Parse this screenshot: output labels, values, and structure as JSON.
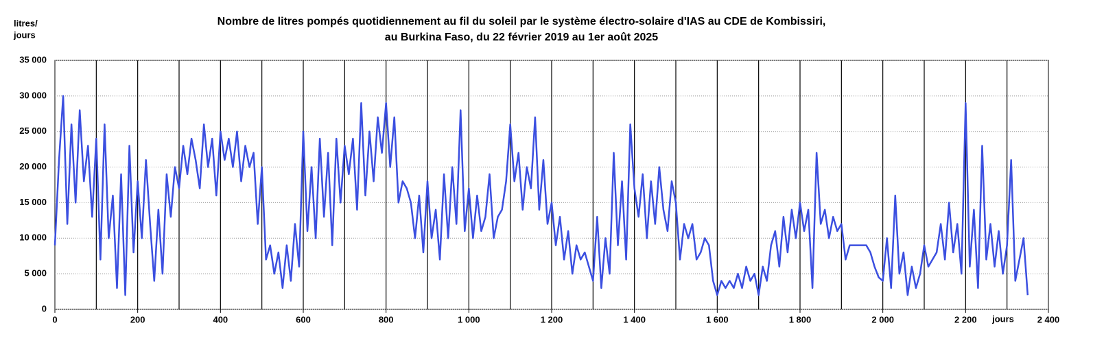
{
  "chart_data": {
    "type": "line",
    "title": [
      "Nombre de litres pompés quotidiennement au fil du soleil par le système électro-solaire d'IAS au CDE de Kombissiri,",
      "au Burkina Faso, du 22 février 2019 au 1er août 2025"
    ],
    "y_label": [
      "litres/",
      "jours"
    ],
    "x_label": "jours",
    "xlim": [
      0,
      2400
    ],
    "ylim": [
      0,
      35000
    ],
    "xticks": [
      0,
      200,
      400,
      600,
      800,
      {
        "value": 1000,
        "label": "1 000"
      },
      {
        "value": 1200,
        "label": "1 200"
      },
      {
        "value": 1400,
        "label": "1 400"
      },
      {
        "value": 1600,
        "label": "1 600"
      },
      {
        "value": 1800,
        "label": "1 800"
      },
      {
        "value": 2000,
        "label": "2 000"
      },
      {
        "value": 2200,
        "label": "2 200"
      },
      {
        "value": 2400,
        "label": "2 400"
      }
    ],
    "yticks": [
      0,
      {
        "value": 5000,
        "label": "5 000"
      },
      {
        "value": 10000,
        "label": "10 000"
      },
      {
        "value": 15000,
        "label": "15 000"
      },
      {
        "value": 20000,
        "label": "20 000"
      },
      {
        "value": 25000,
        "label": "25 000"
      },
      {
        "value": 30000,
        "label": "30 000"
      },
      {
        "value": 35000,
        "label": "35 000"
      }
    ],
    "xgrid": [
      100,
      200,
      300,
      400,
      500,
      600,
      700,
      800,
      900,
      1000,
      1100,
      1200,
      1300,
      1400,
      1500,
      1600,
      1700,
      1800,
      1900,
      2000,
      2100,
      2200,
      2300
    ],
    "grid": true,
    "x": [
      0,
      10,
      20,
      30,
      40,
      50,
      60,
      70,
      80,
      90,
      100,
      110,
      120,
      130,
      140,
      150,
      160,
      170,
      180,
      190,
      200,
      210,
      220,
      230,
      240,
      250,
      260,
      270,
      280,
      290,
      300,
      310,
      320,
      330,
      340,
      350,
      360,
      370,
      380,
      390,
      400,
      410,
      420,
      430,
      440,
      450,
      460,
      470,
      480,
      490,
      500,
      510,
      520,
      530,
      540,
      550,
      560,
      570,
      580,
      590,
      600,
      610,
      620,
      630,
      640,
      650,
      660,
      670,
      680,
      690,
      700,
      710,
      720,
      730,
      740,
      750,
      760,
      770,
      780,
      790,
      800,
      810,
      820,
      830,
      840,
      850,
      860,
      870,
      880,
      890,
      900,
      910,
      920,
      930,
      940,
      950,
      960,
      970,
      980,
      990,
      1000,
      1010,
      1020,
      1030,
      1040,
      1050,
      1060,
      1070,
      1080,
      1090,
      1100,
      1110,
      1120,
      1130,
      1140,
      1150,
      1160,
      1170,
      1180,
      1190,
      1200,
      1210,
      1220,
      1230,
      1240,
      1250,
      1260,
      1270,
      1280,
      1290,
      1300,
      1310,
      1320,
      1330,
      1340,
      1350,
      1360,
      1370,
      1380,
      1390,
      1400,
      1410,
      1420,
      1430,
      1440,
      1450,
      1460,
      1470,
      1480,
      1490,
      1500,
      1510,
      1520,
      1530,
      1540,
      1550,
      1560,
      1570,
      1580,
      1590,
      1600,
      1610,
      1620,
      1630,
      1640,
      1650,
      1660,
      1670,
      1680,
      1690,
      1700,
      1710,
      1720,
      1730,
      1740,
      1750,
      1760,
      1770,
      1780,
      1790,
      1800,
      1810,
      1820,
      1830,
      1840,
      1850,
      1860,
      1870,
      1880,
      1890,
      1900,
      1910,
      1920,
      1930,
      1940,
      1950,
      1960,
      1970,
      1980,
      1990,
      2000,
      2010,
      2020,
      2030,
      2040,
      2050,
      2060,
      2070,
      2080,
      2090,
      2100,
      2110,
      2120,
      2130,
      2140,
      2150,
      2160,
      2170,
      2180,
      2190,
      2200,
      2210,
      2220,
      2230,
      2240,
      2250,
      2260,
      2270,
      2280,
      2290,
      2300,
      2310,
      2320,
      2330,
      2340,
      2350
    ],
    "series": [
      {
        "color": "#3b4fe0",
        "values": [
          9000,
          21000,
          30000,
          12000,
          26000,
          15000,
          28000,
          18000,
          23000,
          13000,
          24000,
          7000,
          26000,
          10000,
          16000,
          3000,
          19000,
          2000,
          23000,
          8000,
          18000,
          10000,
          21000,
          12000,
          4000,
          14000,
          5000,
          19000,
          13000,
          20000,
          17000,
          23000,
          19000,
          24000,
          21000,
          17000,
          26000,
          20000,
          24000,
          16000,
          25000,
          21000,
          24000,
          20000,
          25000,
          18000,
          23000,
          20000,
          22000,
          12000,
          20000,
          7000,
          9000,
          5000,
          8000,
          3000,
          9000,
          4000,
          12000,
          6000,
          25000,
          11000,
          20000,
          10000,
          24000,
          13000,
          22000,
          9000,
          24000,
          15000,
          23000,
          19000,
          24000,
          14000,
          29000,
          16000,
          25000,
          18000,
          27000,
          22000,
          29000,
          20000,
          27000,
          15000,
          18000,
          17000,
          15000,
          10000,
          16000,
          8000,
          18000,
          10000,
          14000,
          7000,
          19000,
          10000,
          20000,
          12000,
          28000,
          11000,
          17000,
          10000,
          16000,
          11000,
          13000,
          19000,
          10000,
          13000,
          14000,
          18000,
          26000,
          18000,
          22000,
          14000,
          20000,
          17000,
          27000,
          14000,
          21000,
          12000,
          15000,
          9000,
          13000,
          7000,
          11000,
          5000,
          9000,
          7000,
          8000,
          6000,
          4000,
          13000,
          3000,
          10000,
          5000,
          22000,
          9000,
          18000,
          7000,
          26000,
          17000,
          13000,
          19000,
          10000,
          18000,
          12000,
          20000,
          14000,
          11000,
          18000,
          15000,
          7000,
          12000,
          10000,
          12000,
          7000,
          8000,
          10000,
          9000,
          4000,
          2000,
          4000,
          3000,
          4000,
          3000,
          5000,
          3000,
          6000,
          4000,
          5000,
          2000,
          6000,
          4000,
          9000,
          11000,
          6000,
          13000,
          8000,
          14000,
          10000,
          15000,
          11000,
          14000,
          3000,
          22000,
          12000,
          14000,
          10000,
          13000,
          11000,
          12000,
          7000,
          9000,
          9000,
          9000,
          9000,
          9000,
          8000,
          6000,
          4500,
          4000,
          10000,
          3000,
          16000,
          5000,
          8000,
          2000,
          6000,
          3000,
          5000,
          9000,
          6000,
          7000,
          8000,
          12000,
          7000,
          15000,
          8000,
          12000,
          5000,
          29000,
          6000,
          14000,
          3000,
          23000,
          7000,
          12000,
          6000,
          11000,
          5000,
          9000,
          21000,
          4000,
          7000,
          10000,
          2000
        ]
      }
    ]
  }
}
